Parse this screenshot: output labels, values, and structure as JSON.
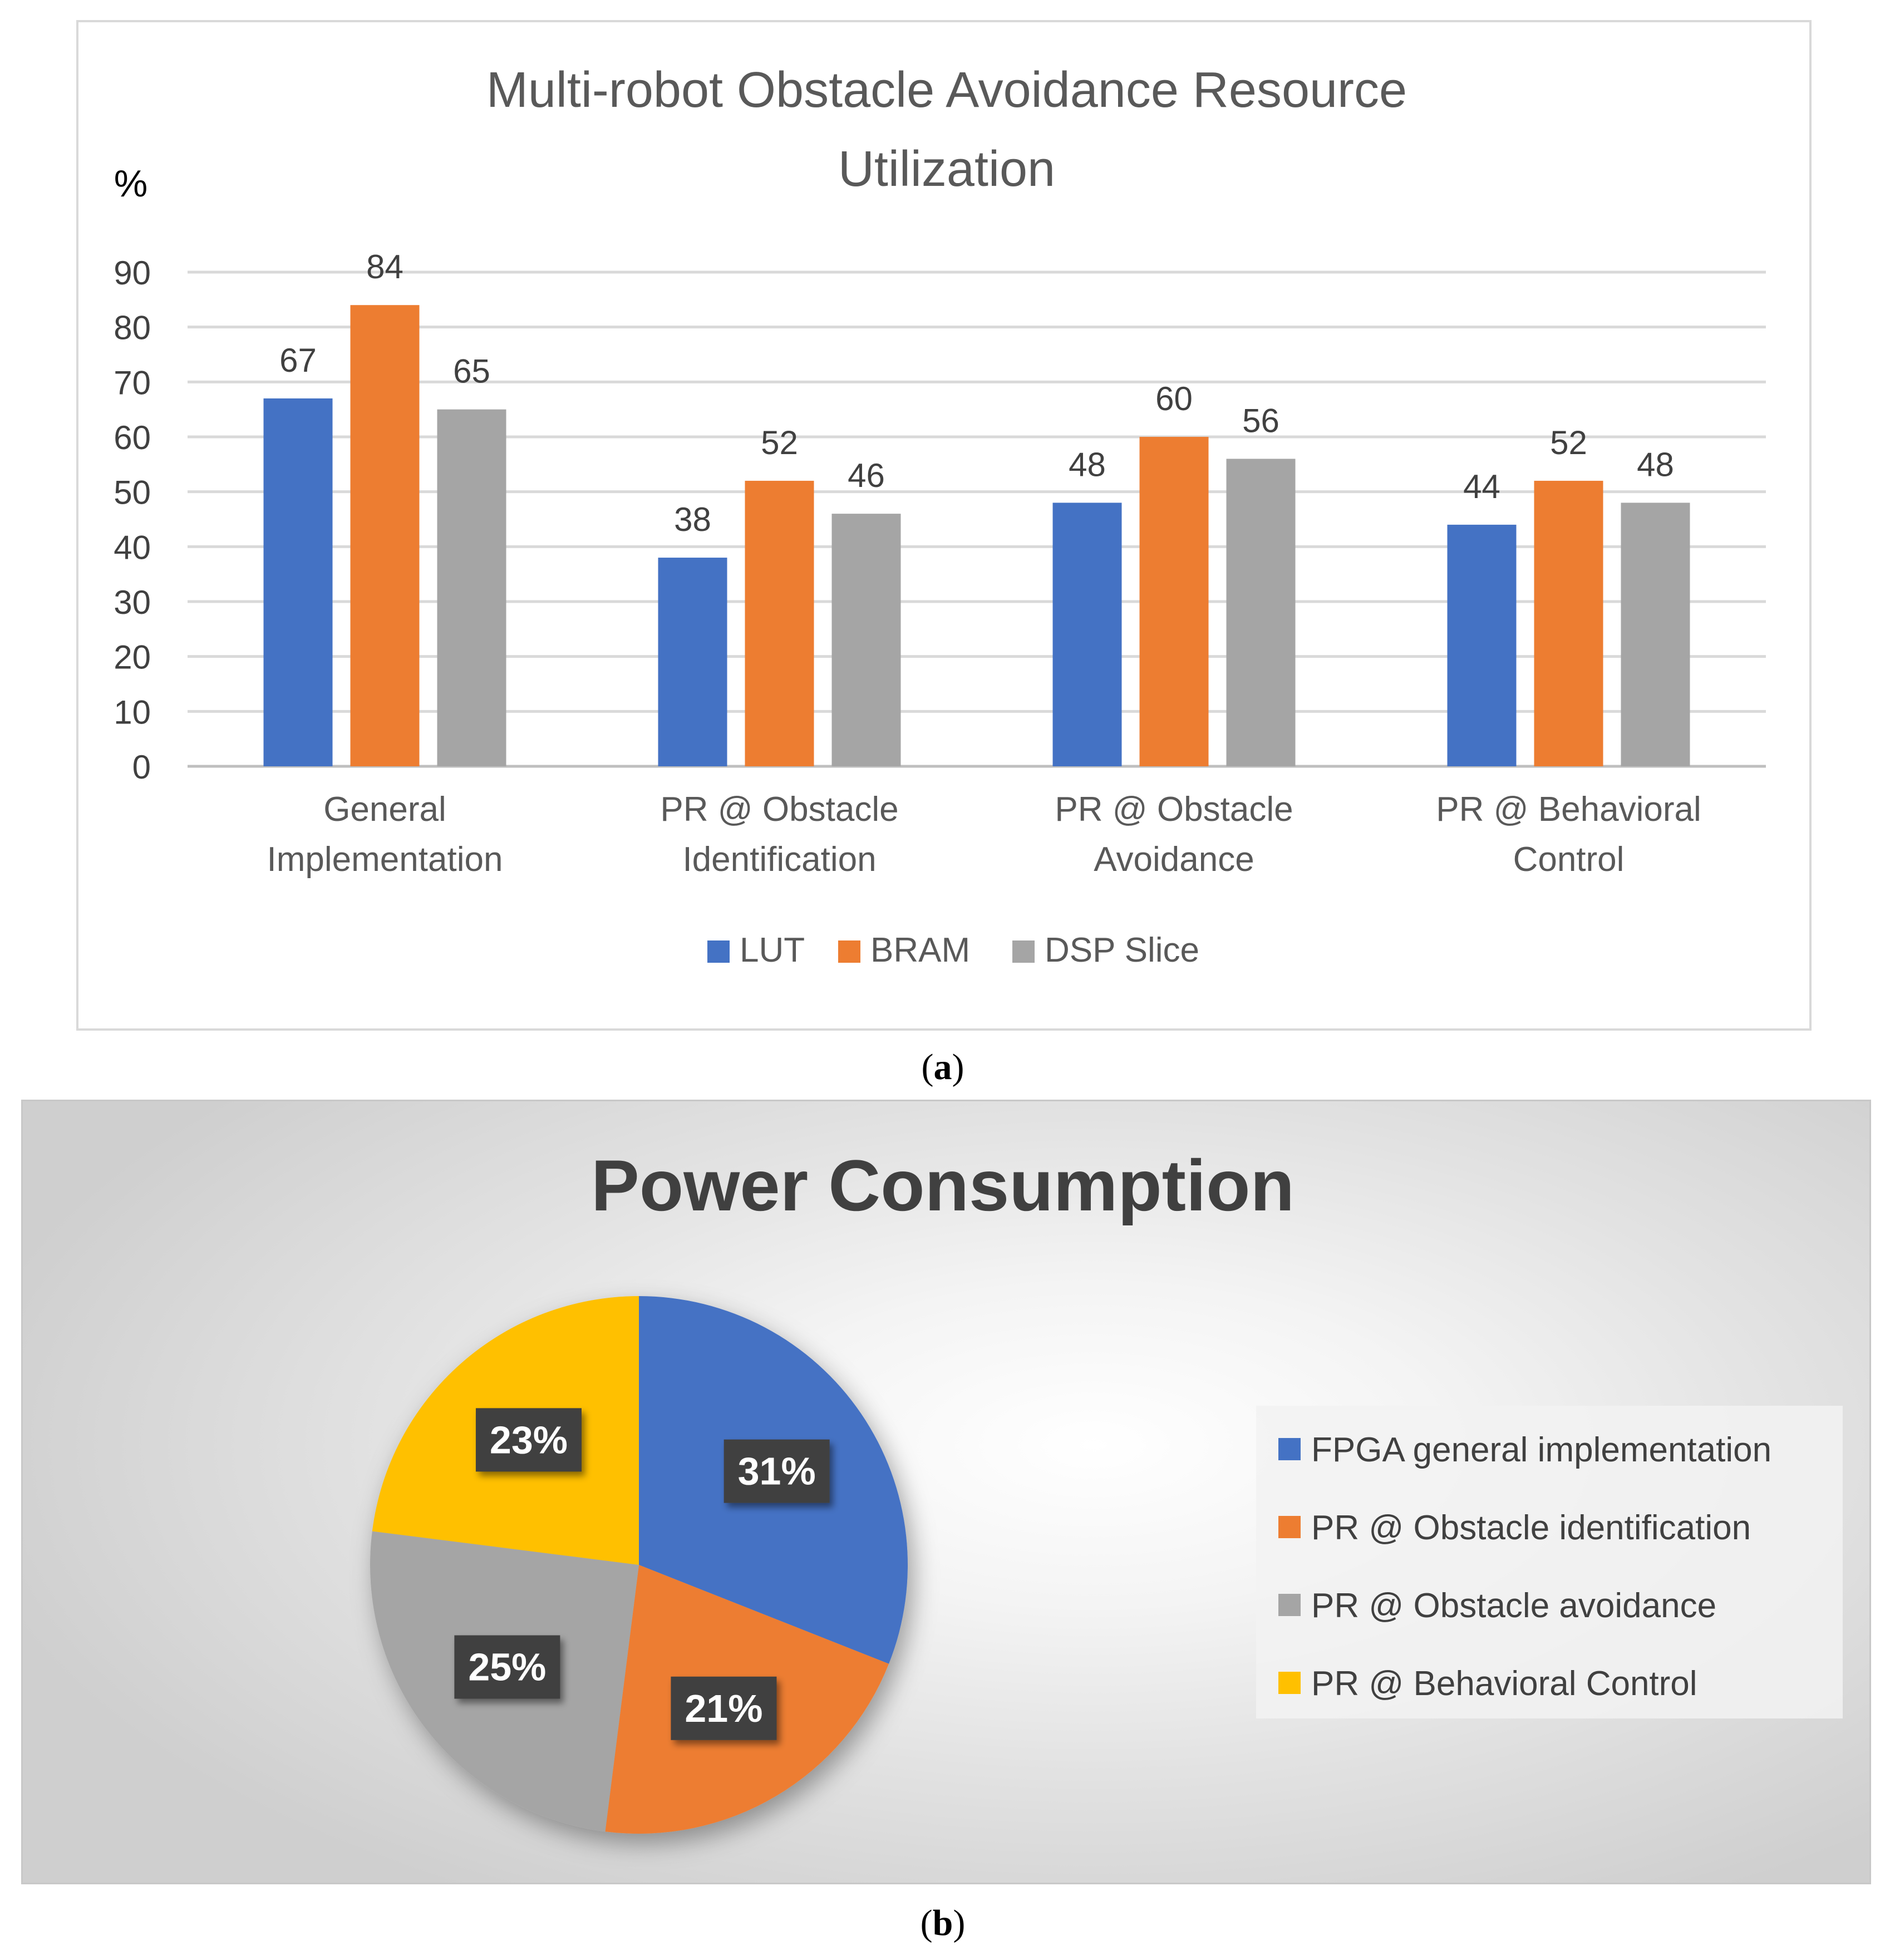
{
  "figure_a": {
    "caption_letter": "a",
    "chart_data": {
      "type": "bar",
      "title": "Multi-robot Obstacle Avoidance Resource Utilization",
      "title_lines": [
        "Multi-robot Obstacle Avoidance Resource",
        "Utilization"
      ],
      "ylabel": "%",
      "xlabel": "",
      "ylim": [
        0,
        90
      ],
      "yticks": [
        0,
        10,
        20,
        30,
        40,
        50,
        60,
        70,
        80,
        90
      ],
      "grid": true,
      "legend_position": "bottom",
      "categories": [
        "General Implementation",
        "PR @ Obstacle Identification",
        "PR @ Obstacle Avoidance",
        "PR @ Behavioral Control"
      ],
      "category_lines": [
        [
          "General",
          "Implementation"
        ],
        [
          "PR @ Obstacle",
          "Identification"
        ],
        [
          "PR @ Obstacle",
          "Avoidance"
        ],
        [
          "PR @ Behavioral",
          "Control"
        ]
      ],
      "series": [
        {
          "name": "LUT",
          "color": "#4472c4",
          "values": [
            67,
            38,
            48,
            44
          ]
        },
        {
          "name": "BRAM",
          "color": "#ed7d31",
          "values": [
            84,
            52,
            60,
            52
          ]
        },
        {
          "name": "DSP Slice",
          "color": "#a5a5a5",
          "values": [
            65,
            46,
            56,
            48
          ]
        }
      ]
    }
  },
  "figure_b": {
    "caption_letter": "b",
    "chart_data": {
      "type": "pie",
      "title": "Power Consumption",
      "legend_position": "right",
      "slices": [
        {
          "label": "FPGA general implementation",
          "value": 31,
          "display": "31%",
          "color": "#4472c4"
        },
        {
          "label": "PR @ Obstacle identification",
          "value": 21,
          "display": "21%",
          "color": "#ed7d31"
        },
        {
          "label": "PR @ Obstacle avoidance",
          "value": 25,
          "display": "25%",
          "color": "#a5a5a5"
        },
        {
          "label": "PR @ Behavioral Control",
          "value": 23,
          "display": "23%",
          "color": "#ffc000"
        }
      ]
    }
  }
}
